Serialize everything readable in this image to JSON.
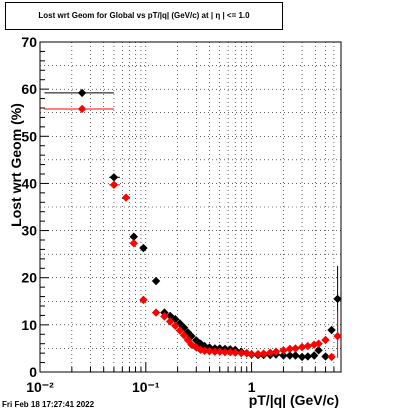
{
  "header": {
    "title": "Lost wrt Geom for Global vs pT/|q| (GeV/c) at |  η  | <= 1.0"
  },
  "footer": {
    "timestamp": "Fri Feb 18 17:27:41 2022"
  },
  "chart_data": {
    "type": "scatter",
    "title": "Lost wrt Geom for Global vs pT/|q| (GeV/c) at |  η  | <= 1.0",
    "xlabel": "pT/|q| (GeV/c)",
    "ylabel": "Lost wrt Geom (%)",
    "x_scale": "log",
    "xlim": [
      0.01,
      7
    ],
    "ylim": [
      0,
      70
    ],
    "grid": true,
    "x_tick_labels": [
      {
        "value": 0.01,
        "label": "10⁻²"
      },
      {
        "value": 0.1,
        "label": "10⁻¹"
      },
      {
        "value": 1,
        "label": "1"
      }
    ],
    "y_tick_labels": [
      0,
      10,
      20,
      30,
      40,
      50,
      60,
      70
    ],
    "series": [
      {
        "color": "#000000",
        "marker": "diamond",
        "points": [
          {
            "x": 0.025,
            "y": 59.2,
            "xlo": 0.011,
            "xhi": 0.05
          },
          {
            "x": 0.05,
            "y": 41.3,
            "xlo": 0.045,
            "xhi": 0.057
          },
          {
            "x": 0.077,
            "y": 28.7
          },
          {
            "x": 0.095,
            "y": 26.3
          },
          {
            "x": 0.125,
            "y": 19.3
          },
          {
            "x": 0.15,
            "y": 12.6
          },
          {
            "x": 0.17,
            "y": 11.9
          },
          {
            "x": 0.19,
            "y": 11.2
          },
          {
            "x": 0.21,
            "y": 10.3
          },
          {
            "x": 0.23,
            "y": 9.4
          },
          {
            "x": 0.25,
            "y": 8.4
          },
          {
            "x": 0.27,
            "y": 7.6
          },
          {
            "x": 0.3,
            "y": 6.7
          },
          {
            "x": 0.33,
            "y": 6.0
          },
          {
            "x": 0.36,
            "y": 5.5
          },
          {
            "x": 0.4,
            "y": 5.2
          },
          {
            "x": 0.45,
            "y": 5.0
          },
          {
            "x": 0.5,
            "y": 5.0
          },
          {
            "x": 0.56,
            "y": 4.9
          },
          {
            "x": 0.63,
            "y": 4.8
          },
          {
            "x": 0.7,
            "y": 4.7
          },
          {
            "x": 0.8,
            "y": 4.3
          },
          {
            "x": 0.9,
            "y": 4.0
          },
          {
            "x": 1.0,
            "y": 3.7
          },
          {
            "x": 1.15,
            "y": 3.6
          },
          {
            "x": 1.3,
            "y": 3.6
          },
          {
            "x": 1.5,
            "y": 3.6
          },
          {
            "x": 1.7,
            "y": 3.7
          },
          {
            "x": 2.0,
            "y": 3.5
          },
          {
            "x": 2.3,
            "y": 3.5
          },
          {
            "x": 2.6,
            "y": 3.5
          },
          {
            "x": 3.0,
            "y": 3.2
          },
          {
            "x": 3.4,
            "y": 3.3
          },
          {
            "x": 3.9,
            "y": 3.5
          },
          {
            "x": 4.3,
            "y": 4.6
          },
          {
            "x": 5.0,
            "y": 3.3
          },
          {
            "x": 5.7,
            "y": 8.9
          },
          {
            "x": 6.5,
            "y": 15.5,
            "ylo": 7.5,
            "yhi": 22.5
          }
        ]
      },
      {
        "color": "#ff0000",
        "marker": "diamond",
        "points": [
          {
            "x": 0.025,
            "y": 55.8,
            "xlo": 0.011,
            "xhi": 0.05
          },
          {
            "x": 0.05,
            "y": 39.7,
            "xlo": 0.045,
            "xhi": 0.057
          },
          {
            "x": 0.065,
            "y": 37.0
          },
          {
            "x": 0.077,
            "y": 27.3
          },
          {
            "x": 0.095,
            "y": 15.3
          },
          {
            "x": 0.125,
            "y": 12.6
          },
          {
            "x": 0.15,
            "y": 11.8
          },
          {
            "x": 0.17,
            "y": 10.7
          },
          {
            "x": 0.19,
            "y": 9.8
          },
          {
            "x": 0.21,
            "y": 8.8
          },
          {
            "x": 0.23,
            "y": 7.8
          },
          {
            "x": 0.25,
            "y": 6.8
          },
          {
            "x": 0.27,
            "y": 5.8
          },
          {
            "x": 0.3,
            "y": 5.2
          },
          {
            "x": 0.33,
            "y": 4.7
          },
          {
            "x": 0.36,
            "y": 4.5
          },
          {
            "x": 0.4,
            "y": 4.4
          },
          {
            "x": 0.45,
            "y": 4.3
          },
          {
            "x": 0.5,
            "y": 4.3
          },
          {
            "x": 0.56,
            "y": 4.2
          },
          {
            "x": 0.63,
            "y": 4.2
          },
          {
            "x": 0.7,
            "y": 4.1
          },
          {
            "x": 0.8,
            "y": 4.0
          },
          {
            "x": 0.9,
            "y": 4.0
          },
          {
            "x": 1.0,
            "y": 3.8
          },
          {
            "x": 1.15,
            "y": 3.8
          },
          {
            "x": 1.3,
            "y": 3.9
          },
          {
            "x": 1.5,
            "y": 4.1
          },
          {
            "x": 1.7,
            "y": 4.3
          },
          {
            "x": 2.0,
            "y": 4.6
          },
          {
            "x": 2.3,
            "y": 4.9
          },
          {
            "x": 2.6,
            "y": 5.0
          },
          {
            "x": 3.0,
            "y": 5.3
          },
          {
            "x": 3.4,
            "y": 5.5
          },
          {
            "x": 3.9,
            "y": 5.8
          },
          {
            "x": 4.3,
            "y": 6.0
          },
          {
            "x": 5.0,
            "y": 6.8
          },
          {
            "x": 5.7,
            "y": 3.2
          },
          {
            "x": 6.5,
            "y": 7.6,
            "ylo": 3.0,
            "yhi": 13.0
          }
        ]
      }
    ]
  }
}
